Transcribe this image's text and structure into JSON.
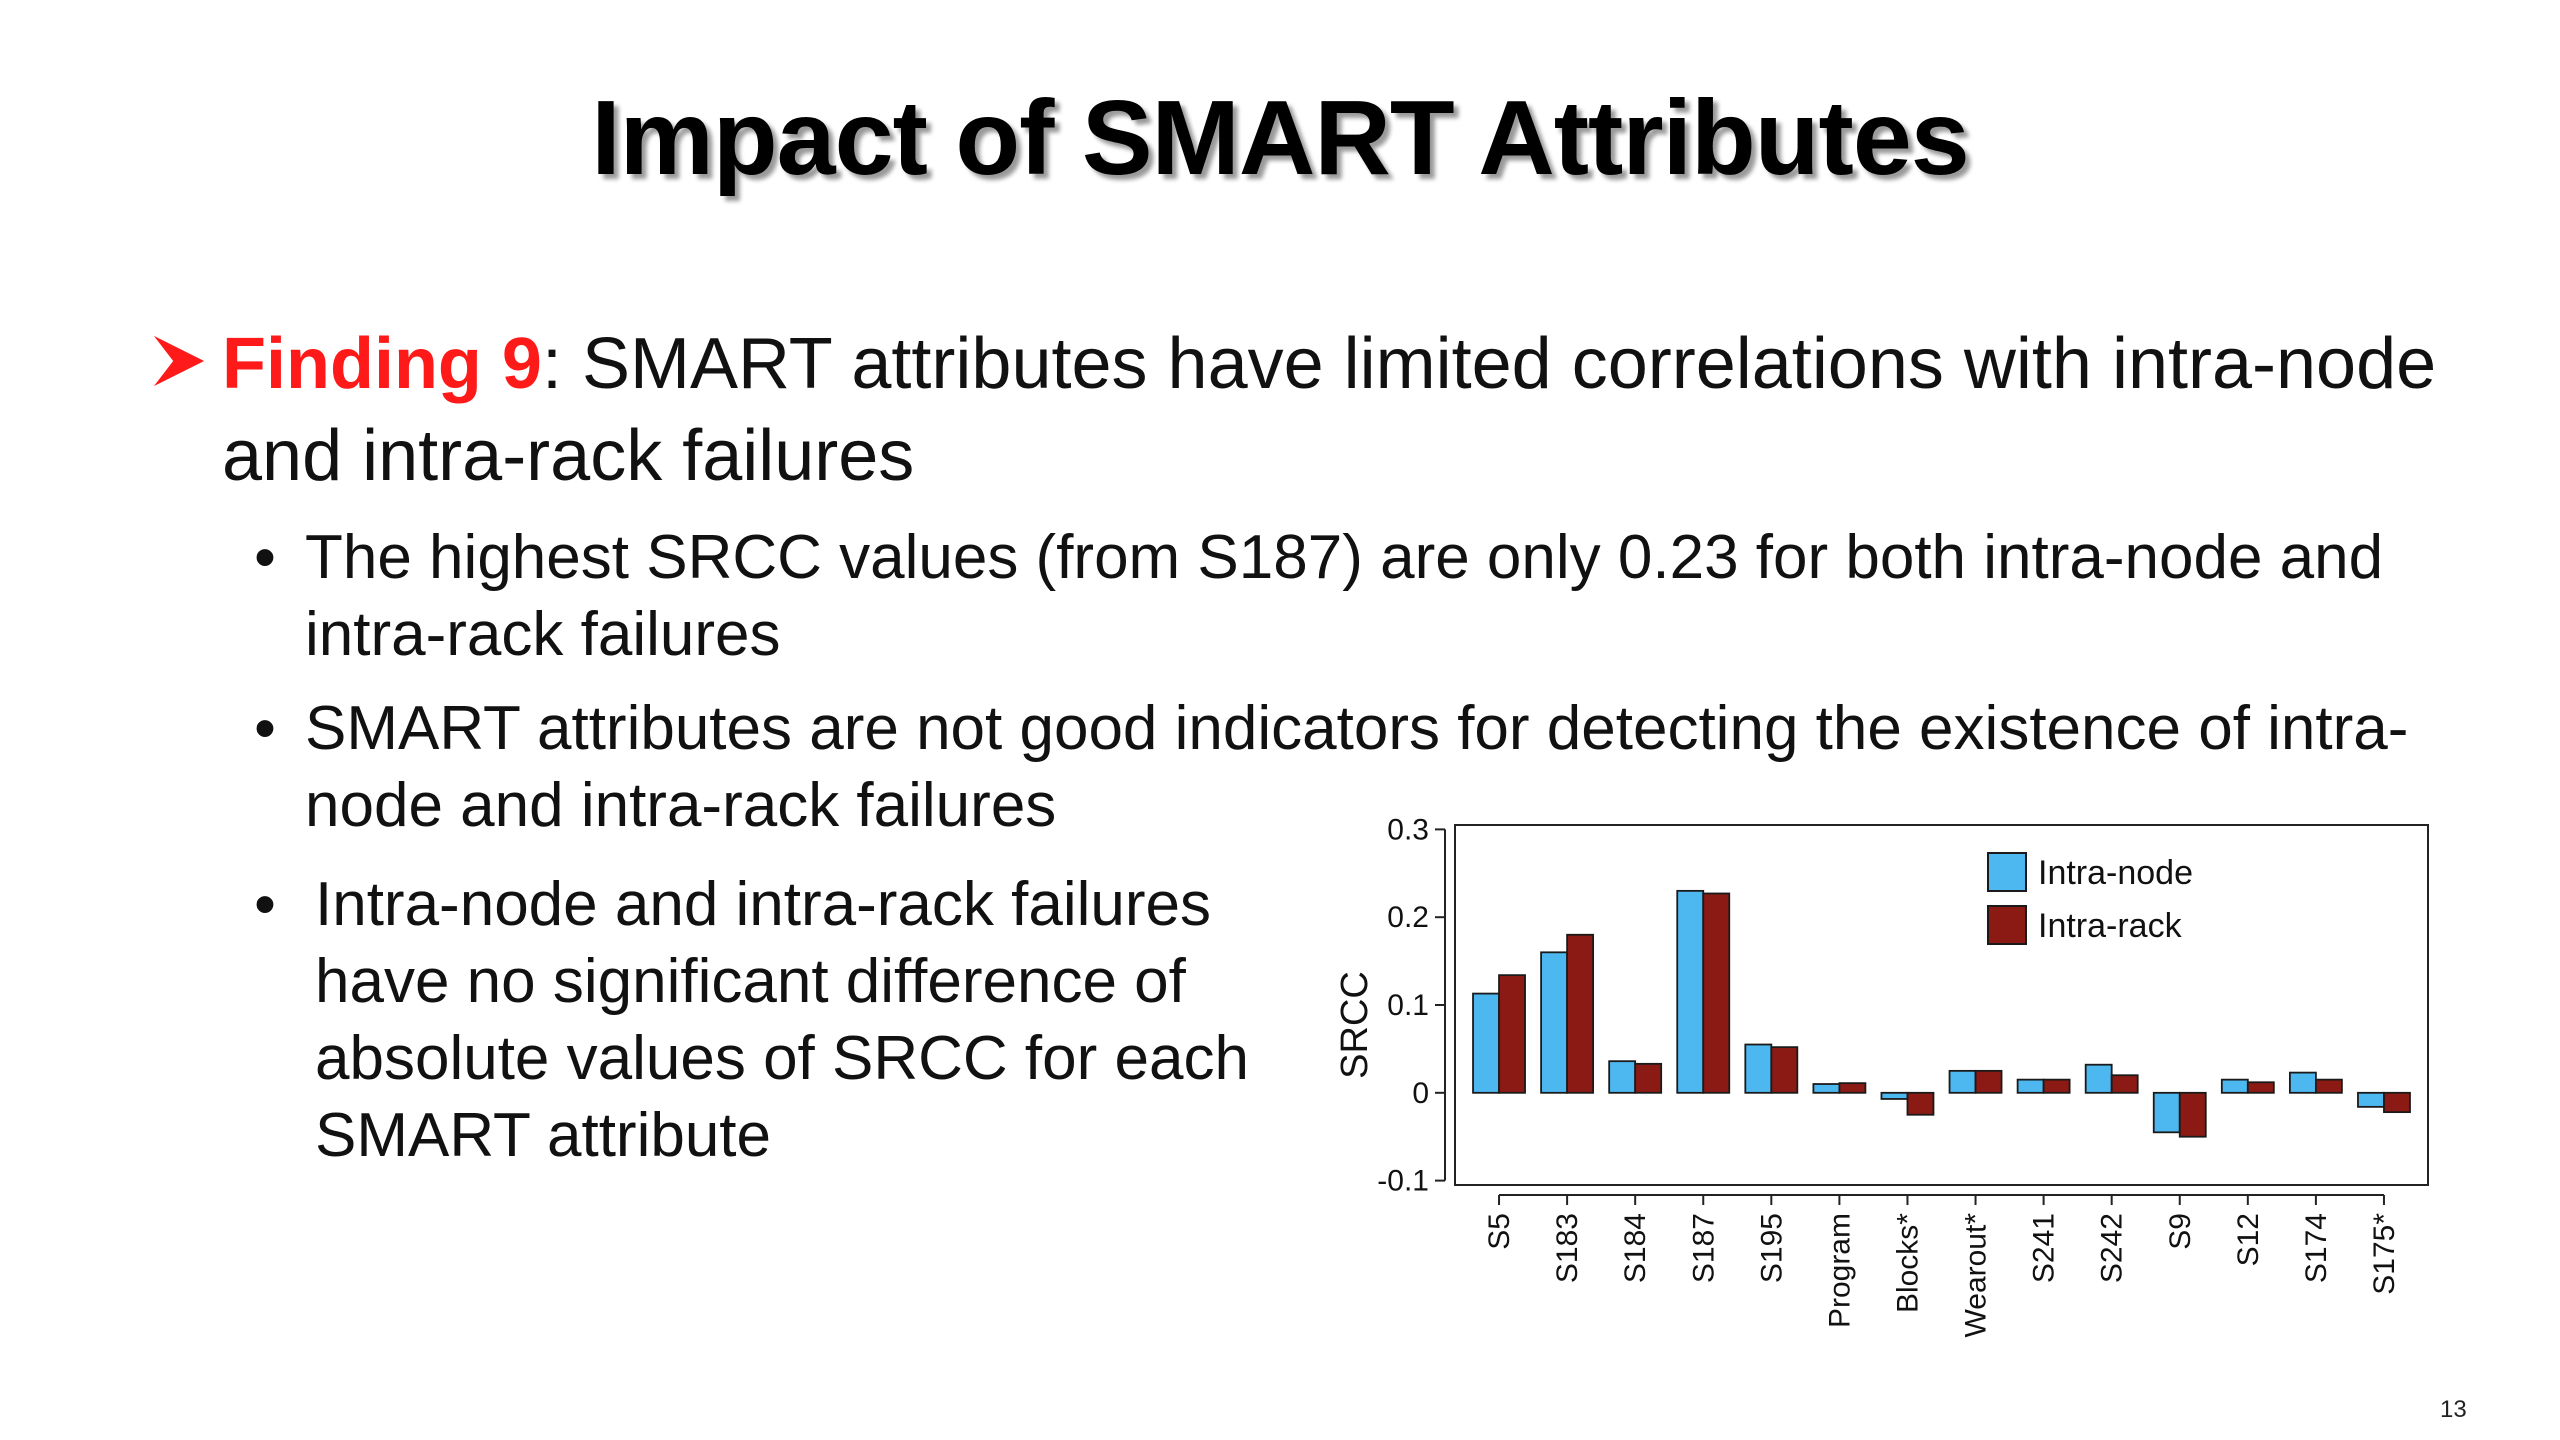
{
  "slide": {
    "title": "Impact of SMART Attributes",
    "finding_label": "Finding 9",
    "finding_text": ": SMART attributes have limited correlations with intra-node and intra-rack failures",
    "bullets": [
      "The highest SRCC values (from S187) are only 0.23 for both intra-node and intra-rack failures",
      "SMART attributes are not good indicators for detecting the existence of intra-node and intra-rack failures",
      "Intra-node and intra-rack failures have no significant difference of absolute values of SRCC for each SMART attribute"
    ],
    "bullet_symbol": "•",
    "arrow_icon": "arrow-bullet-icon",
    "page_number": "13",
    "colors": {
      "accent": "#ff1a1a",
      "title_shadow": "#9a9a9a"
    }
  },
  "chart_data": {
    "type": "bar",
    "ylabel": "SRCC",
    "xlabel": "",
    "ylim": [
      -0.1,
      0.3
    ],
    "yticks": [
      -0.1,
      0,
      0.1,
      0.2,
      0.3
    ],
    "ytick_labels": [
      "-0.1",
      "0",
      "0.1",
      "0.2",
      "0.3"
    ],
    "legend_position": "top-right",
    "grid": false,
    "categories": [
      "S5",
      "S183",
      "S184",
      "S187",
      "S195",
      "Program",
      "Blocks*",
      "Wearout*",
      "S241",
      "S242",
      "S9",
      "S12",
      "S174",
      "S175*"
    ],
    "series": [
      {
        "name": "Intra-node",
        "color": "#4db8f0",
        "values": [
          0.113,
          0.16,
          0.036,
          0.23,
          0.055,
          0.01,
          -0.007,
          0.025,
          0.015,
          0.032,
          -0.045,
          0.015,
          0.023,
          -0.016
        ]
      },
      {
        "name": "Intra-rack",
        "color": "#8b1a14",
        "values": [
          0.134,
          0.18,
          0.033,
          0.227,
          0.052,
          0.011,
          -0.025,
          0.025,
          0.015,
          0.02,
          -0.05,
          0.012,
          0.015,
          -0.022
        ]
      }
    ]
  }
}
